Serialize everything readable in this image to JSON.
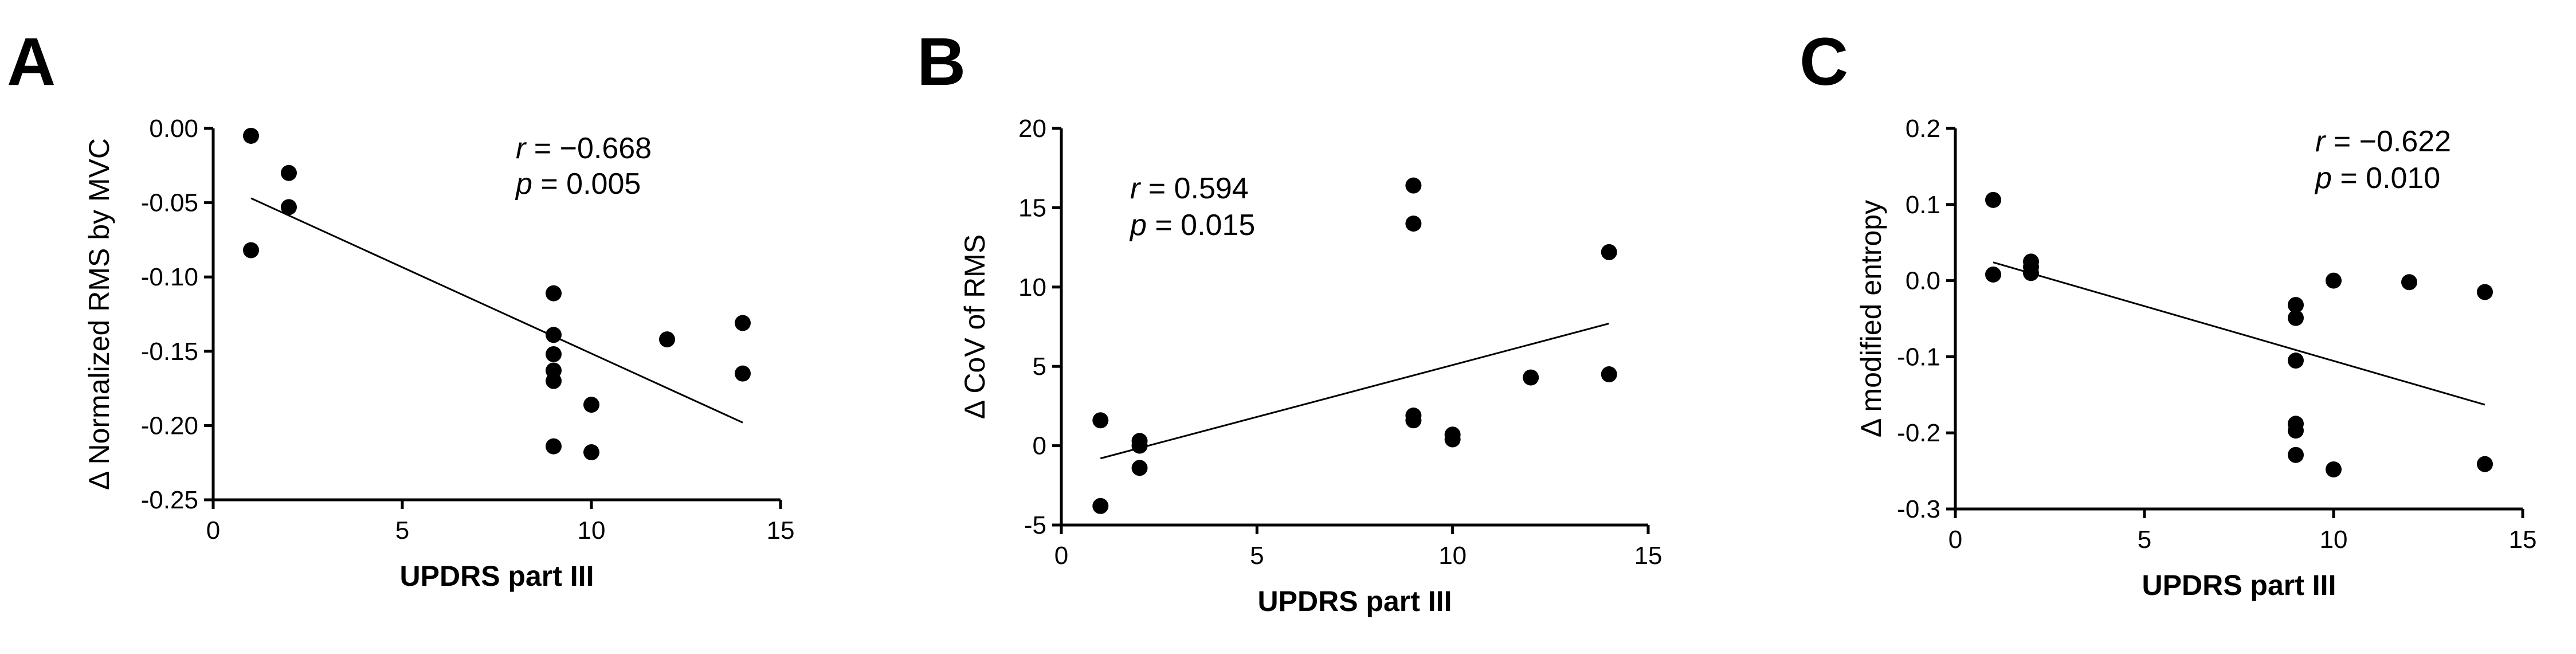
{
  "chart_data": [
    {
      "type": "scatter",
      "panel": "A",
      "xlabel": "UPDRS part  III",
      "ylabel": "Δ Normalized RMS by MVC",
      "xlim": [
        0,
        15
      ],
      "ylim": [
        -0.25,
        0.0
      ],
      "xticks": [
        0,
        5,
        10,
        15
      ],
      "xtick_labels": [
        "0",
        "5",
        "10",
        "15"
      ],
      "yticks": [
        0.0,
        -0.05,
        -0.1,
        -0.15,
        -0.2,
        -0.25
      ],
      "ytick_labels": [
        "0.00",
        "-0.05",
        "-0.10",
        "-0.15",
        "-0.20",
        "-0.25"
      ],
      "points": [
        {
          "x": 1,
          "y": -0.005
        },
        {
          "x": 1,
          "y": -0.082
        },
        {
          "x": 2,
          "y": -0.03
        },
        {
          "x": 2,
          "y": -0.053
        },
        {
          "x": 9,
          "y": -0.111
        },
        {
          "x": 9,
          "y": -0.139
        },
        {
          "x": 9,
          "y": -0.152
        },
        {
          "x": 9,
          "y": -0.163
        },
        {
          "x": 9,
          "y": -0.17
        },
        {
          "x": 9,
          "y": -0.214
        },
        {
          "x": 10,
          "y": -0.186
        },
        {
          "x": 10,
          "y": -0.218
        },
        {
          "x": 12,
          "y": -0.142
        },
        {
          "x": 14,
          "y": -0.131
        },
        {
          "x": 14,
          "y": -0.165
        }
      ],
      "fit_line": {
        "x": [
          1,
          14
        ],
        "y": [
          -0.047,
          -0.198
        ]
      },
      "stats": {
        "r_symbol": "r",
        "r_value": " = −0.668",
        "p_symbol": "p",
        "p_value": " = 0.005"
      },
      "grid": false
    },
    {
      "type": "scatter",
      "panel": "B",
      "xlabel": "UPDRS part III",
      "ylabel": "Δ CoV of RMS",
      "xlim": [
        0,
        15
      ],
      "ylim": [
        -5,
        20
      ],
      "xticks": [
        0,
        5,
        10,
        15
      ],
      "xtick_labels": [
        "0",
        "5",
        "10",
        "15"
      ],
      "yticks": [
        20,
        15,
        10,
        5,
        0,
        -5
      ],
      "ytick_labels": [
        "20",
        "15",
        "10",
        "5",
        "0",
        "-5"
      ],
      "points": [
        {
          "x": 1,
          "y": 1.6
        },
        {
          "x": 1,
          "y": -3.8
        },
        {
          "x": 2,
          "y": 0.3
        },
        {
          "x": 2,
          "y": 0.0
        },
        {
          "x": 2,
          "y": -1.4
        },
        {
          "x": 9,
          "y": 16.4
        },
        {
          "x": 9,
          "y": 14.0
        },
        {
          "x": 9,
          "y": 1.9
        },
        {
          "x": 9,
          "y": 1.6
        },
        {
          "x": 10,
          "y": 0.7
        },
        {
          "x": 10,
          "y": 0.4
        },
        {
          "x": 12,
          "y": 4.3
        },
        {
          "x": 14,
          "y": 12.2
        },
        {
          "x": 14,
          "y": 4.5
        }
      ],
      "fit_line": {
        "x": [
          1,
          14
        ],
        "y": [
          -0.8,
          7.7
        ]
      },
      "stats": {
        "r_symbol": "r",
        "r_value": " = 0.594",
        "p_symbol": "p",
        "p_value": " = 0.015"
      },
      "grid": false
    },
    {
      "type": "scatter",
      "panel": "C",
      "xlabel": "UPDRS part III",
      "ylabel": "Δ modified entropy",
      "xlim": [
        0,
        15
      ],
      "ylim": [
        -0.3,
        0.2
      ],
      "xticks": [
        0,
        5,
        10,
        15
      ],
      "xtick_labels": [
        "0",
        "5",
        "10",
        "15"
      ],
      "yticks": [
        0.2,
        0.1,
        0.0,
        -0.1,
        -0.2,
        -0.3
      ],
      "ytick_labels": [
        "0.2",
        "0.1",
        "0.0",
        "-0.1",
        "-0.2",
        "-0.3"
      ],
      "points": [
        {
          "x": 1,
          "y": 0.106
        },
        {
          "x": 1,
          "y": 0.008
        },
        {
          "x": 2,
          "y": 0.025
        },
        {
          "x": 2,
          "y": 0.018
        },
        {
          "x": 2,
          "y": 0.01
        },
        {
          "x": 9,
          "y": -0.032
        },
        {
          "x": 9,
          "y": -0.049
        },
        {
          "x": 9,
          "y": -0.105
        },
        {
          "x": 9,
          "y": -0.188
        },
        {
          "x": 9,
          "y": -0.197
        },
        {
          "x": 9,
          "y": -0.229
        },
        {
          "x": 10,
          "y": 0.0
        },
        {
          "x": 10,
          "y": -0.248
        },
        {
          "x": 12,
          "y": -0.002
        },
        {
          "x": 14,
          "y": -0.015
        },
        {
          "x": 14,
          "y": -0.241
        }
      ],
      "fit_line": {
        "x": [
          1,
          14
        ],
        "y": [
          0.024,
          -0.163
        ]
      },
      "stats": {
        "r_symbol": "r",
        "r_value": " = −0.622",
        "p_symbol": "p",
        "p_value": " = 0.010"
      },
      "grid": false
    }
  ]
}
